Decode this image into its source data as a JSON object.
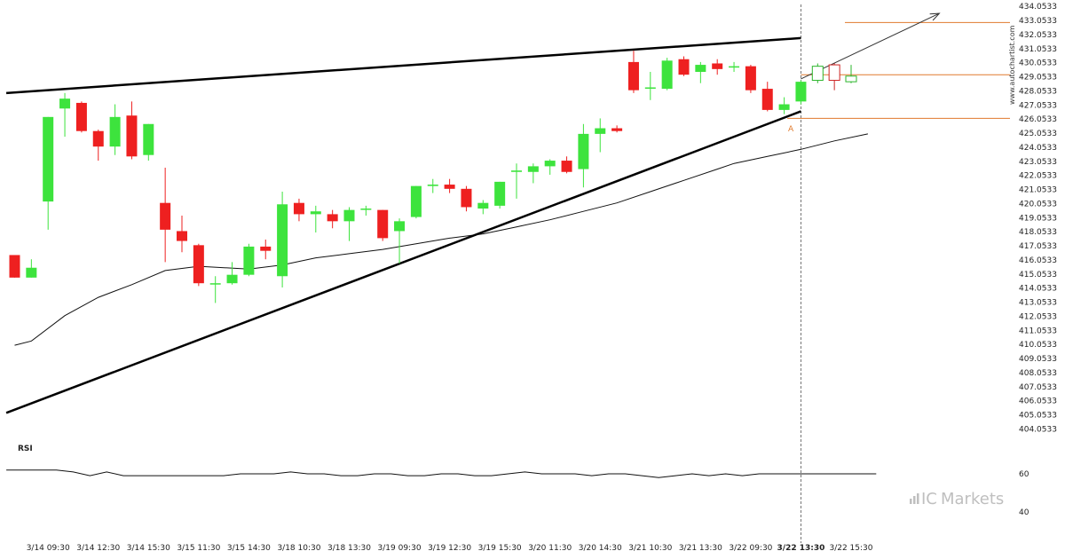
{
  "chart_data": [
    {
      "type": "candlestick",
      "title": "",
      "watermark": "www.autochartist.com",
      "brand": {
        "prefix": "IC",
        "suffix": "Markets"
      },
      "y_axis": {
        "min": 403.5,
        "max": 434.5,
        "ticks": [
          "404.0533",
          "405.0533",
          "406.0533",
          "407.0533",
          "408.0533",
          "409.0533",
          "410.0533",
          "411.0533",
          "412.0533",
          "413.0533",
          "414.0533",
          "415.0533",
          "416.0533",
          "417.0533",
          "418.0533",
          "419.0533",
          "420.0533",
          "421.0533",
          "422.0533",
          "423.0533",
          "424.0533",
          "425.0533",
          "426.0533",
          "427.0533",
          "428.0533",
          "429.0533",
          "430.0533",
          "431.0533",
          "432.0533",
          "433.0533",
          "434.0533"
        ]
      },
      "x_labels": [
        {
          "label": "3/14 09:30",
          "bar": 2,
          "highlight": false
        },
        {
          "label": "3/14 12:30",
          "bar": 5,
          "highlight": false
        },
        {
          "label": "3/14 15:30",
          "bar": 8,
          "highlight": false
        },
        {
          "label": "3/15 11:30",
          "bar": 11,
          "highlight": false
        },
        {
          "label": "3/15 14:30",
          "bar": 14,
          "highlight": false
        },
        {
          "label": "3/18 10:30",
          "bar": 17,
          "highlight": false
        },
        {
          "label": "3/18 13:30",
          "bar": 20,
          "highlight": false
        },
        {
          "label": "3/19 09:30",
          "bar": 23,
          "highlight": false
        },
        {
          "label": "3/19 12:30",
          "bar": 26,
          "highlight": false
        },
        {
          "label": "3/19 15:30",
          "bar": 29,
          "highlight": false
        },
        {
          "label": "3/20 11:30",
          "bar": 32,
          "highlight": false
        },
        {
          "label": "3/20 14:30",
          "bar": 35,
          "highlight": false
        },
        {
          "label": "3/21 10:30",
          "bar": 38,
          "highlight": false
        },
        {
          "label": "3/21 13:30",
          "bar": 41,
          "highlight": false
        },
        {
          "label": "3/22 09:30",
          "bar": 44,
          "highlight": false
        },
        {
          "label": "3/22 13:30",
          "bar": 47,
          "highlight": true
        },
        {
          "label": "3/22 15:30",
          "bar": 50,
          "highlight": false
        }
      ],
      "candles": [
        {
          "o": 416.4,
          "h": 416.4,
          "l": 414.8,
          "c": 414.8
        },
        {
          "o": 414.8,
          "h": 416.1,
          "l": 414.8,
          "c": 415.5
        },
        {
          "o": 420.2,
          "h": 426.2,
          "l": 418.2,
          "c": 426.2
        },
        {
          "o": 426.8,
          "h": 427.9,
          "l": 424.8,
          "c": 427.5
        },
        {
          "o": 427.2,
          "h": 427.3,
          "l": 425.1,
          "c": 425.2
        },
        {
          "o": 425.2,
          "h": 425.3,
          "l": 423.1,
          "c": 424.1
        },
        {
          "o": 424.1,
          "h": 427.1,
          "l": 423.5,
          "c": 426.2
        },
        {
          "o": 426.3,
          "h": 427.3,
          "l": 423.2,
          "c": 423.4
        },
        {
          "o": 423.5,
          "h": 425.7,
          "l": 423.1,
          "c": 425.7
        },
        {
          "o": 420.1,
          "h": 422.6,
          "l": 415.9,
          "c": 418.2
        },
        {
          "o": 418.1,
          "h": 419.2,
          "l": 416.6,
          "c": 417.4
        },
        {
          "o": 417.1,
          "h": 417.2,
          "l": 414.2,
          "c": 414.4
        },
        {
          "o": 414.4,
          "h": 414.9,
          "l": 413.0,
          "c": 414.4
        },
        {
          "o": 414.4,
          "h": 415.9,
          "l": 414.3,
          "c": 415.0
        },
        {
          "o": 415.0,
          "h": 417.2,
          "l": 414.9,
          "c": 417.0
        },
        {
          "o": 417.0,
          "h": 417.5,
          "l": 416.1,
          "c": 416.7
        },
        {
          "o": 414.9,
          "h": 420.9,
          "l": 414.1,
          "c": 420.0
        },
        {
          "o": 420.1,
          "h": 420.4,
          "l": 418.8,
          "c": 419.3
        },
        {
          "o": 419.3,
          "h": 419.9,
          "l": 418.0,
          "c": 419.5
        },
        {
          "o": 419.3,
          "h": 419.6,
          "l": 418.3,
          "c": 418.8
        },
        {
          "o": 418.8,
          "h": 419.8,
          "l": 417.4,
          "c": 419.6
        },
        {
          "o": 419.7,
          "h": 419.9,
          "l": 419.2,
          "c": 419.7
        },
        {
          "o": 419.6,
          "h": 419.6,
          "l": 417.4,
          "c": 417.6
        },
        {
          "o": 418.1,
          "h": 419.0,
          "l": 415.8,
          "c": 418.8
        },
        {
          "o": 419.1,
          "h": 421.3,
          "l": 419.0,
          "c": 421.3
        },
        {
          "o": 421.3,
          "h": 421.8,
          "l": 420.8,
          "c": 421.4
        },
        {
          "o": 421.4,
          "h": 421.8,
          "l": 420.8,
          "c": 421.1
        },
        {
          "o": 421.1,
          "h": 421.3,
          "l": 419.5,
          "c": 419.8
        },
        {
          "o": 419.7,
          "h": 420.3,
          "l": 419.3,
          "c": 420.1
        },
        {
          "o": 419.9,
          "h": 421.6,
          "l": 419.7,
          "c": 421.6
        },
        {
          "o": 422.3,
          "h": 422.9,
          "l": 420.4,
          "c": 422.4
        },
        {
          "o": 422.3,
          "h": 422.9,
          "l": 421.5,
          "c": 422.7
        },
        {
          "o": 422.7,
          "h": 423.2,
          "l": 422.1,
          "c": 423.1
        },
        {
          "o": 423.1,
          "h": 423.4,
          "l": 422.2,
          "c": 422.3
        },
        {
          "o": 422.5,
          "h": 425.7,
          "l": 421.2,
          "c": 425.0
        },
        {
          "o": 425.0,
          "h": 426.1,
          "l": 423.7,
          "c": 425.4
        },
        {
          "o": 425.4,
          "h": 425.6,
          "l": 425.1,
          "c": 425.2
        },
        {
          "o": 430.1,
          "h": 430.9,
          "l": 427.9,
          "c": 428.1
        },
        {
          "o": 428.3,
          "h": 429.4,
          "l": 427.4,
          "c": 428.3
        },
        {
          "o": 428.2,
          "h": 430.4,
          "l": 428.1,
          "c": 430.2
        },
        {
          "o": 430.3,
          "h": 430.5,
          "l": 429.1,
          "c": 429.2
        },
        {
          "o": 429.4,
          "h": 430.1,
          "l": 428.6,
          "c": 429.9
        },
        {
          "o": 430.0,
          "h": 430.3,
          "l": 429.2,
          "c": 429.6
        },
        {
          "o": 429.8,
          "h": 430.1,
          "l": 429.4,
          "c": 429.8
        },
        {
          "o": 429.8,
          "h": 429.9,
          "l": 427.9,
          "c": 428.1
        },
        {
          "o": 428.2,
          "h": 428.7,
          "l": 426.6,
          "c": 426.7
        },
        {
          "o": 426.7,
          "h": 427.6,
          "l": 426.4,
          "c": 427.1
        },
        {
          "o": 427.3,
          "h": 428.8,
          "l": 427.1,
          "c": 428.7
        }
      ],
      "projected_candles": [
        {
          "bar": 48,
          "o": 428.8,
          "h": 430.0,
          "l": 428.6,
          "c": 429.8
        },
        {
          "bar": 49,
          "o": 429.9,
          "h": 430.0,
          "l": 428.1,
          "c": 428.8
        },
        {
          "bar": 50,
          "o": 428.7,
          "h": 429.9,
          "l": 428.6,
          "c": 429.1
        }
      ],
      "moving_average": [
        {
          "bar": 0,
          "v": 410.0
        },
        {
          "bar": 1,
          "v": 410.3
        },
        {
          "bar": 3,
          "v": 412.1
        },
        {
          "bar": 5,
          "v": 413.4
        },
        {
          "bar": 7,
          "v": 414.3
        },
        {
          "bar": 9,
          "v": 415.3
        },
        {
          "bar": 11,
          "v": 415.6
        },
        {
          "bar": 14,
          "v": 415.4
        },
        {
          "bar": 16,
          "v": 415.7
        },
        {
          "bar": 18,
          "v": 416.2
        },
        {
          "bar": 20,
          "v": 416.5
        },
        {
          "bar": 22,
          "v": 416.8
        },
        {
          "bar": 24,
          "v": 417.2
        },
        {
          "bar": 26,
          "v": 417.6
        },
        {
          "bar": 28,
          "v": 417.9
        },
        {
          "bar": 30,
          "v": 418.4
        },
        {
          "bar": 32,
          "v": 418.9
        },
        {
          "bar": 34,
          "v": 419.5
        },
        {
          "bar": 36,
          "v": 420.1
        },
        {
          "bar": 38,
          "v": 420.9
        },
        {
          "bar": 40,
          "v": 421.7
        },
        {
          "bar": 42,
          "v": 422.5
        },
        {
          "bar": 43,
          "v": 422.9
        },
        {
          "bar": 45,
          "v": 423.4
        },
        {
          "bar": 47,
          "v": 423.9
        },
        {
          "bar": 49,
          "v": 424.5
        },
        {
          "bar": 51,
          "v": 425.0
        }
      ],
      "pattern": {
        "name": "Rising Wedge",
        "upper_line": [
          {
            "bar": -0.5,
            "v": 427.9
          },
          {
            "bar": 47,
            "v": 431.8
          }
        ],
        "lower_line": [
          {
            "bar": -0.5,
            "v": 405.2
          },
          {
            "bar": 47,
            "v": 426.6
          }
        ],
        "breakout_bar": 47,
        "point_label": "A",
        "point_bar": 46.4,
        "point_value": 425.7
      },
      "forecast": {
        "arrow": [
          {
            "bar": 47,
            "v": 428.9
          },
          {
            "bar": 54,
            "v": 433.3
          }
        ],
        "target_level": 432.9,
        "resistance_level": 429.2,
        "support_level": 426.1,
        "level_color": "#e07a2e"
      },
      "rsi": {
        "label": "RSI",
        "min": 35,
        "max": 70,
        "ticks": [
          "60",
          "40"
        ],
        "values": [
          62,
          62,
          62,
          62,
          61,
          59,
          61,
          59,
          59,
          59,
          59,
          59,
          59,
          59,
          60,
          60,
          60,
          61,
          60,
          60,
          59,
          59,
          60,
          60,
          59,
          59,
          60,
          60,
          59,
          59,
          60,
          61,
          60,
          60,
          60,
          59,
          60,
          60,
          59,
          58,
          59,
          60,
          59,
          60,
          59,
          60,
          60,
          60,
          60,
          60,
          60,
          60,
          60
        ]
      },
      "colors": {
        "up": "#3de33d",
        "down": "#ee2020",
        "wick": "#333333",
        "projection": "#cc2222",
        "projection_up": "#2bb52b"
      }
    }
  ]
}
